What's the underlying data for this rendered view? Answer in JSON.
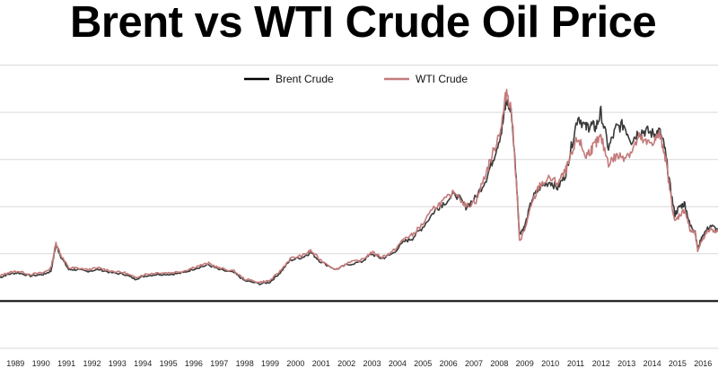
{
  "chart_data": {
    "type": "line",
    "title": "Brent vs WTI Crude Oil Price",
    "xlabel": "",
    "ylabel": "",
    "x_tick_labels": [
      "1989",
      "1990",
      "1991",
      "1992",
      "1993",
      "1994",
      "1995",
      "1996",
      "1997",
      "1998",
      "1999",
      "2000",
      "2001",
      "2002",
      "2003",
      "2004",
      "2005",
      "2006",
      "2007",
      "2008",
      "2009",
      "2010",
      "2011",
      "2012",
      "2013",
      "2014",
      "2015",
      "2016"
    ],
    "xlim": [
      1988.6,
      2016.8
    ],
    "ylim": [
      -30,
      156
    ],
    "grid": true,
    "legend_position": "top-center",
    "colors": {
      "brent": "#3a3a3a",
      "wti": "#c47a7a",
      "zero_line": "#000000",
      "grid": "#d9d9d9"
    },
    "series": [
      {
        "name": "Brent Crude",
        "x": [
          1988.6,
          1988.9,
          1989.3,
          1989.8,
          1990.3,
          1990.6,
          1990.8,
          1991.0,
          1991.3,
          1991.6,
          1992.0,
          1992.5,
          1993.0,
          1993.5,
          1993.9,
          1994.3,
          1994.8,
          1995.3,
          1995.8,
          1996.3,
          1996.8,
          1997.2,
          1997.8,
          1998.2,
          1998.8,
          1999.2,
          1999.6,
          2000.0,
          2000.5,
          2000.8,
          2001.2,
          2001.8,
          2002.2,
          2002.8,
          2003.2,
          2003.6,
          2004.0,
          2004.5,
          2004.8,
          2005.2,
          2005.7,
          2006.0,
          2006.5,
          2006.9,
          2007.3,
          2007.7,
          2008.0,
          2008.3,
          2008.5,
          2008.7,
          2008.9,
          2009.0,
          2009.2,
          2009.5,
          2009.8,
          2010.2,
          2010.5,
          2010.8,
          2011.0,
          2011.3,
          2011.6,
          2011.8,
          2012.0,
          2012.2,
          2012.5,
          2012.8,
          2013.1,
          2013.4,
          2013.7,
          2014.0,
          2014.3,
          2014.5,
          2014.7,
          2014.9,
          2015.1,
          2015.3,
          2015.5,
          2015.7,
          2015.9,
          2016.0,
          2016.2,
          2016.5,
          2016.8
        ],
        "values": [
          15,
          17,
          18,
          16,
          17,
          19,
          36,
          28,
          20,
          20,
          19,
          20,
          18,
          17,
          14,
          16,
          17,
          17,
          18,
          21,
          23,
          20,
          18,
          13,
          11,
          12,
          18,
          26,
          28,
          31,
          25,
          20,
          23,
          25,
          30,
          27,
          30,
          38,
          40,
          47,
          58,
          62,
          68,
          60,
          66,
          78,
          92,
          108,
          128,
          118,
          72,
          43,
          47,
          65,
          72,
          76,
          72,
          80,
          95,
          118,
          110,
          112,
          110,
          120,
          97,
          110,
          112,
          102,
          108,
          108,
          106,
          108,
          98,
          75,
          55,
          60,
          62,
          48,
          45,
          33,
          42,
          48,
          45
        ]
      },
      {
        "name": "WTI Crude",
        "x": [
          1988.6,
          1988.9,
          1989.3,
          1989.8,
          1990.3,
          1990.6,
          1990.8,
          1991.0,
          1991.3,
          1991.6,
          1992.0,
          1992.5,
          1993.0,
          1993.5,
          1993.9,
          1994.3,
          1994.8,
          1995.3,
          1995.8,
          1996.3,
          1996.8,
          1997.2,
          1997.8,
          1998.2,
          1998.8,
          1999.2,
          1999.6,
          2000.0,
          2000.5,
          2000.8,
          2001.2,
          2001.8,
          2002.2,
          2002.8,
          2003.2,
          2003.6,
          2004.0,
          2004.5,
          2004.8,
          2005.2,
          2005.7,
          2006.0,
          2006.5,
          2006.9,
          2007.3,
          2007.7,
          2008.0,
          2008.3,
          2008.5,
          2008.7,
          2008.9,
          2009.0,
          2009.2,
          2009.5,
          2009.8,
          2010.2,
          2010.5,
          2010.8,
          2011.0,
          2011.3,
          2011.6,
          2011.8,
          2012.0,
          2012.2,
          2012.5,
          2012.8,
          2013.1,
          2013.4,
          2013.7,
          2014.0,
          2014.3,
          2014.5,
          2014.7,
          2014.9,
          2015.1,
          2015.3,
          2015.5,
          2015.7,
          2015.9,
          2016.0,
          2016.2,
          2016.5,
          2016.8
        ],
        "values": [
          16,
          18,
          19,
          17,
          18,
          21,
          37,
          29,
          21,
          21,
          20,
          21,
          19,
          18,
          15,
          17,
          18,
          18,
          19,
          22,
          24,
          21,
          19,
          14,
          12,
          13,
          19,
          27,
          29,
          32,
          26,
          20,
          24,
          26,
          31,
          28,
          31,
          40,
          42,
          49,
          60,
          63,
          70,
          60,
          64,
          82,
          96,
          112,
          134,
          120,
          70,
          38,
          45,
          62,
          74,
          78,
          75,
          82,
          90,
          104,
          92,
          96,
          100,
          104,
          88,
          92,
          92,
          95,
          104,
          100,
          102,
          106,
          95,
          72,
          50,
          55,
          58,
          45,
          43,
          32,
          40,
          46,
          44
        ]
      }
    ]
  }
}
